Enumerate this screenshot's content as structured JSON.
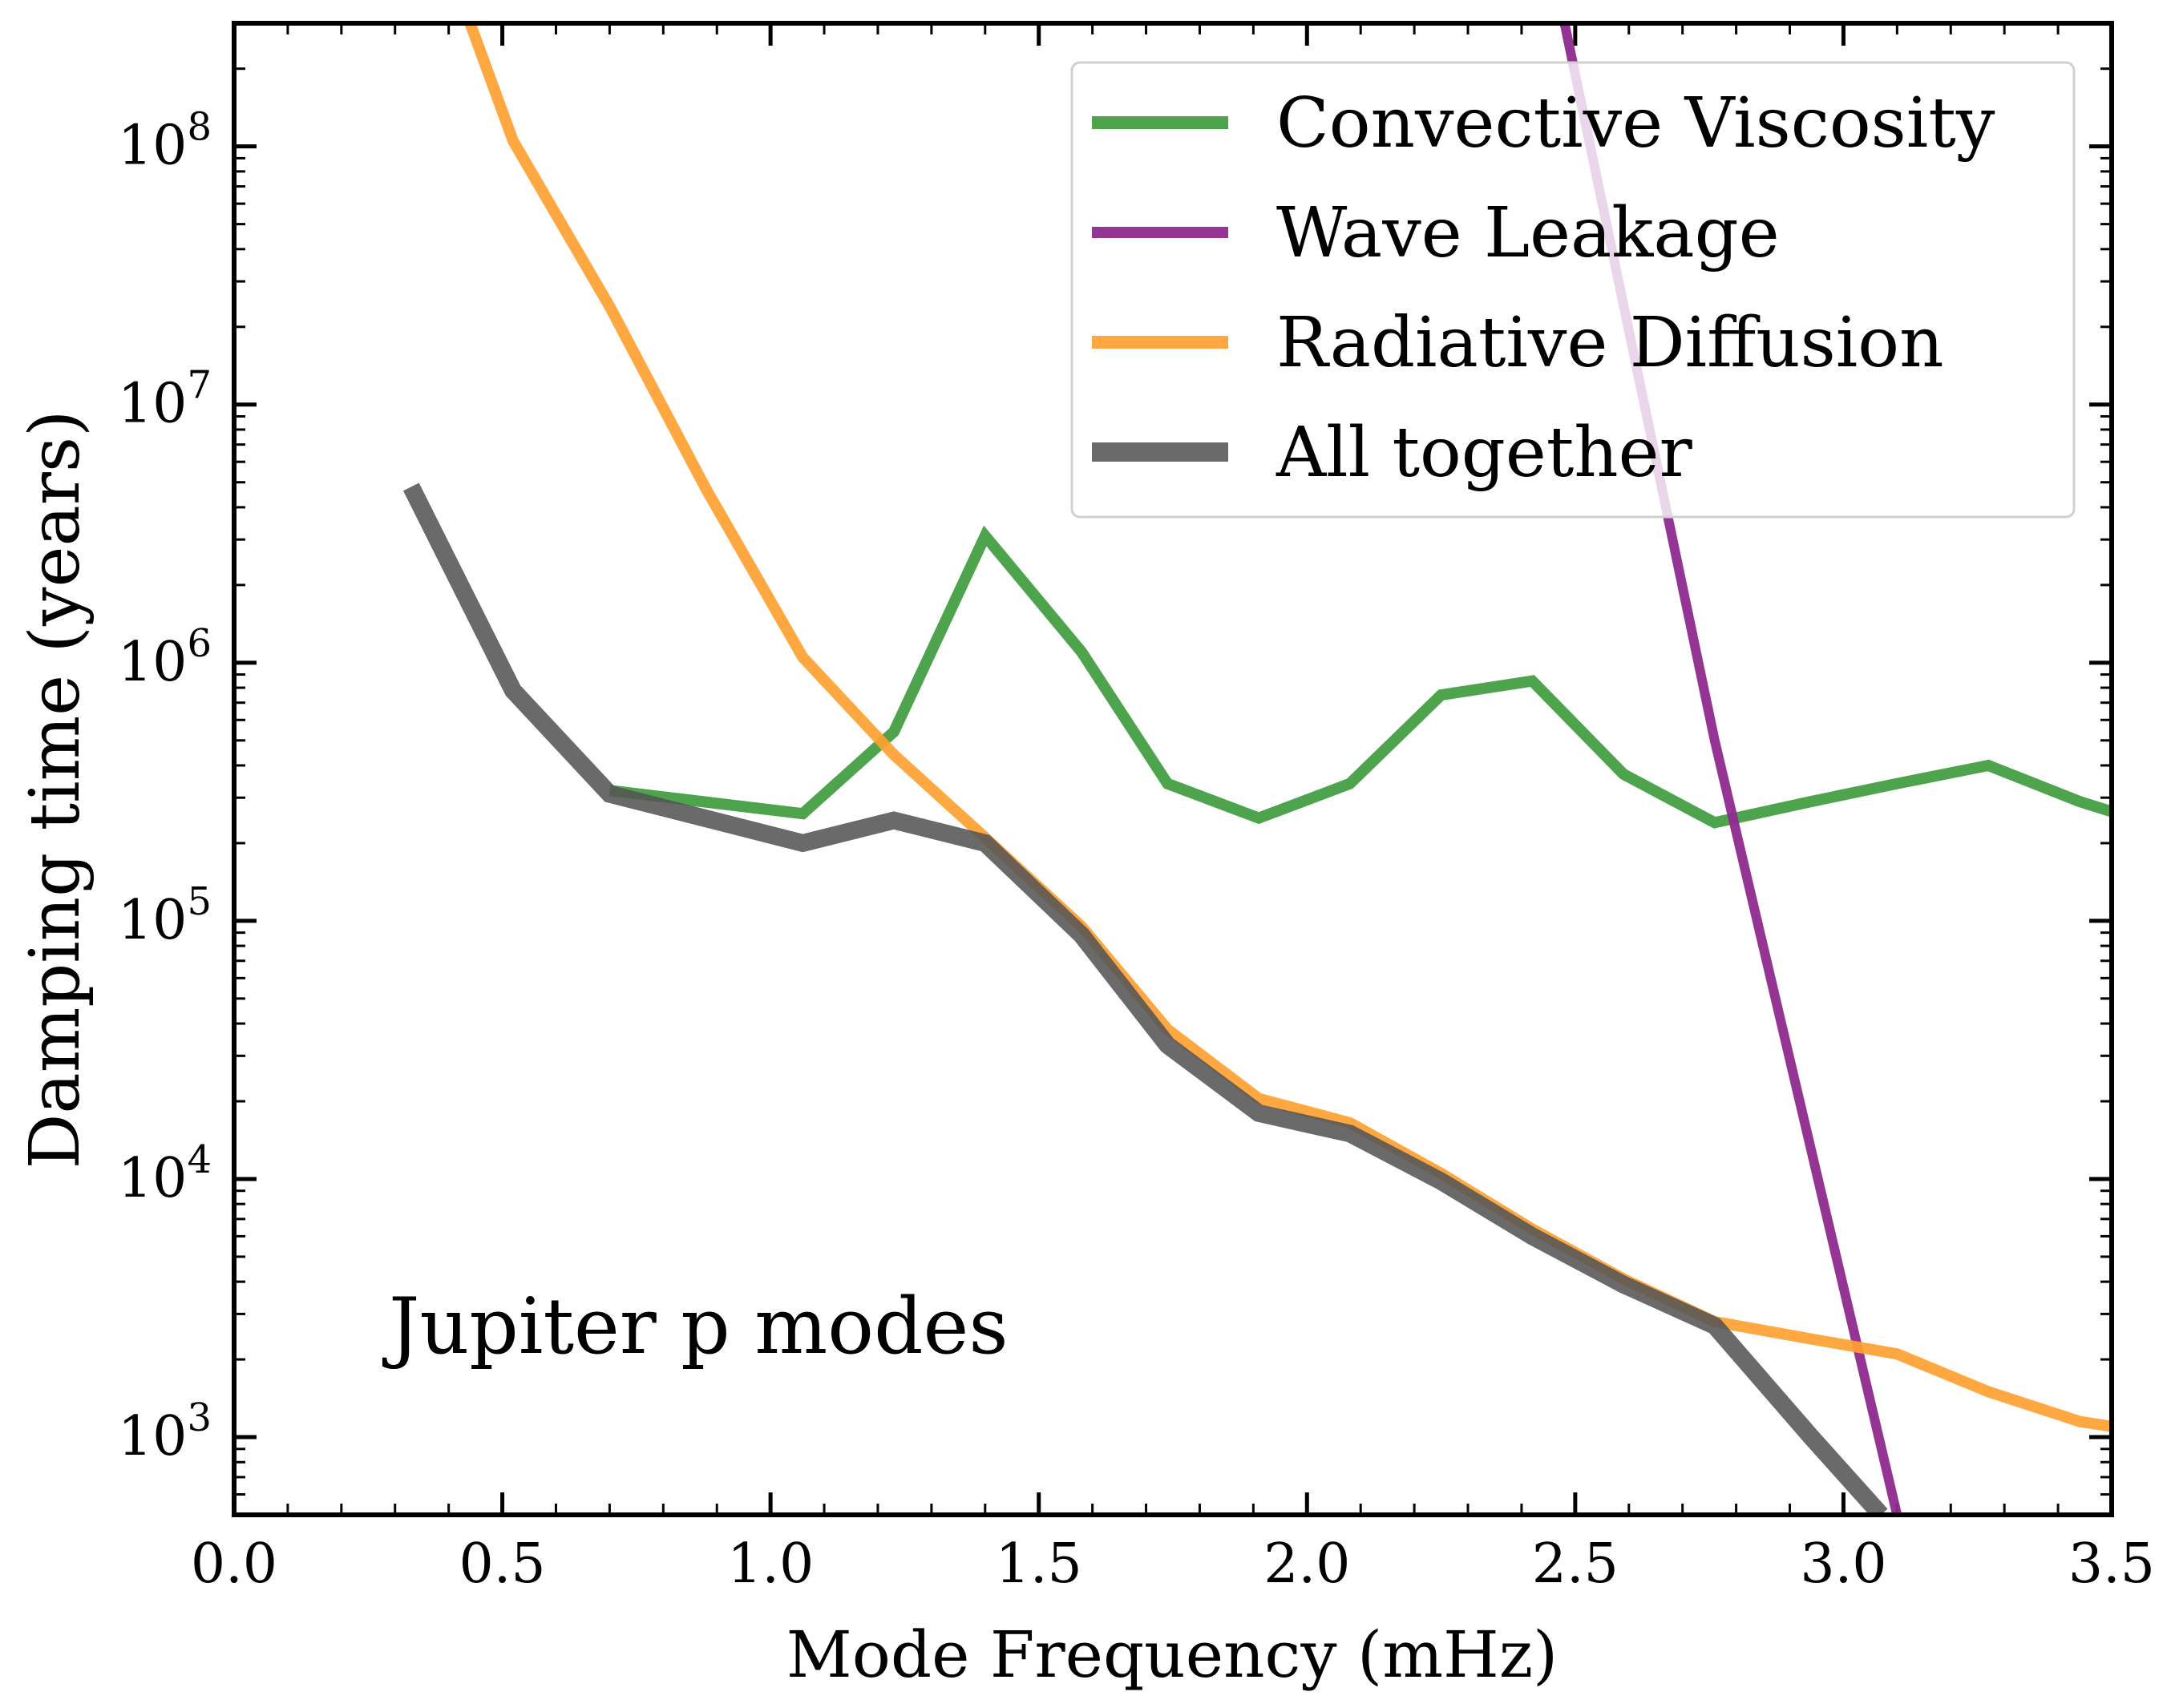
{
  "chart_data": {
    "type": "line",
    "title": "",
    "annotation": "Jupiter p modes",
    "xlabel": "Mode Frequency (mHz)",
    "ylabel": "Damping time (years)",
    "xlim": [
      0.0,
      3.5
    ],
    "ylim": [
      500,
      300000000
    ],
    "yscale": "log",
    "x_ticks": [
      {
        "value": 0.0,
        "label": "0.0"
      },
      {
        "value": 0.5,
        "label": "0.5"
      },
      {
        "value": 1.0,
        "label": "1.0"
      },
      {
        "value": 1.5,
        "label": "1.5"
      },
      {
        "value": 2.0,
        "label": "2.0"
      },
      {
        "value": 2.5,
        "label": "2.5"
      },
      {
        "value": 3.0,
        "label": "3.0"
      },
      {
        "value": 3.5,
        "label": "3.5"
      }
    ],
    "y_ticks": [
      {
        "value": 1000,
        "base": "10",
        "exp": "3"
      },
      {
        "value": 10000,
        "base": "10",
        "exp": "4"
      },
      {
        "value": 100000,
        "base": "10",
        "exp": "5"
      },
      {
        "value": 1000000,
        "base": "10",
        "exp": "6"
      },
      {
        "value": 10000000,
        "base": "10",
        "exp": "7"
      },
      {
        "value": 100000000,
        "base": "10",
        "exp": "8"
      }
    ],
    "legend_position": "top-right",
    "series": [
      {
        "name": "Convective Viscosity",
        "color": "#3a9a3a",
        "x": [
          0.7,
          1.06,
          1.23,
          1.4,
          1.58,
          1.74,
          1.91,
          2.08,
          2.25,
          2.42,
          2.59,
          2.76,
          2.94,
          3.1,
          3.27,
          3.44,
          3.5
        ],
        "y": [
          320000,
          260000,
          540000,
          3100000,
          1100000,
          340000,
          250000,
          340000,
          750000,
          850000,
          370000,
          240000,
          290000,
          340000,
          400000,
          290000,
          265000
        ]
      },
      {
        "name": "Wave Leakage",
        "color": "#8e2a8e",
        "x": [
          2.48,
          2.76,
          3.1
        ],
        "y": [
          300000000,
          500000,
          500
        ]
      },
      {
        "name": "Radiative Diffusion",
        "color": "#ffa030",
        "x": [
          0.44,
          0.52,
          0.7,
          0.88,
          1.06,
          1.23,
          1.4,
          1.58,
          1.74,
          1.91,
          2.08,
          2.25,
          2.42,
          2.59,
          2.76,
          2.94,
          3.1,
          3.27,
          3.44,
          3.5
        ],
        "y": [
          300000000,
          105000000,
          24000000,
          4700000,
          1050000,
          440000,
          210000,
          95000,
          38000,
          20500,
          16500,
          10500,
          6400,
          4100,
          2800,
          2400,
          2100,
          1500,
          1150,
          1100
        ]
      },
      {
        "name": "All together",
        "color": "#555555",
        "x": [
          0.33,
          0.52,
          0.7,
          1.06,
          1.23,
          1.4,
          1.58,
          1.74,
          1.91,
          2.08,
          2.25,
          2.42,
          2.59,
          2.76,
          2.94,
          3.07
        ],
        "y": [
          4800000,
          780000,
          310000,
          200000,
          245000,
          200000,
          88000,
          33000,
          18000,
          15000,
          9800,
          6000,
          3900,
          2700,
          1000,
          500
        ]
      }
    ]
  }
}
